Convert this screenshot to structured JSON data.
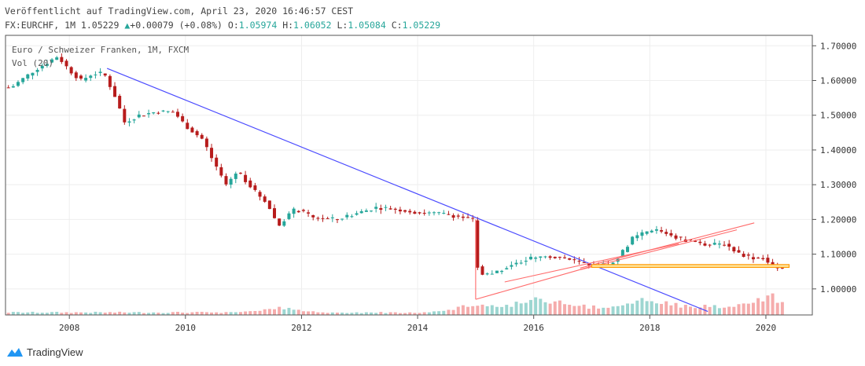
{
  "header": {
    "published": "Veröffentlicht auf TradingView.com, April 23, 2020 16:46:57 CEST",
    "symbol_line": "FX:EURCHF, 1M 1.05229",
    "change": "+0.00079 (+0.08%)",
    "o_label": "O:",
    "o_value": "1.05974",
    "h_label": "H:",
    "h_value": "1.06052",
    "l_label": "L:",
    "l_value": "1.05084",
    "c_label": "C:",
    "c_value": "1.05229"
  },
  "footer": {
    "brand": "TradingView"
  },
  "colors": {
    "up": "#26a69a",
    "down": "#b71c1c",
    "vol_up": "#92d2cc",
    "vol_down": "#f4a3a3",
    "trendline": "#4b4bff",
    "fan": "#ff6b6b",
    "zone_fill": "#fde9a6",
    "zone_stroke": "#ff9800",
    "grid": "#eeeeee",
    "axis": "#555555"
  },
  "chart_data": {
    "type": "candlestick",
    "instrument": "Euro / Schweizer Franken, 1M, FXCM",
    "volume_label": "Vol (20)",
    "x_range": [
      2006.9,
      2020.8
    ],
    "y_range": [
      0.925,
      1.73
    ],
    "x_ticks": [
      "2008",
      "2010",
      "2012",
      "2014",
      "2016",
      "2018",
      "2020"
    ],
    "x_tick_values": [
      2008,
      2010,
      2012,
      2014,
      2016,
      2018,
      2020
    ],
    "y_ticks": [
      "1.70000",
      "1.60000",
      "1.50000",
      "1.40000",
      "1.30000",
      "1.20000",
      "1.10000",
      "1.00000"
    ],
    "y_tick_values": [
      1.7,
      1.6,
      1.5,
      1.4,
      1.3,
      1.2,
      1.1,
      1.0
    ],
    "anchors": [
      [
        2007.0,
        1.58
      ],
      [
        2007.4,
        1.63
      ],
      [
        2007.8,
        1.67
      ],
      [
        2008.0,
        1.63
      ],
      [
        2008.2,
        1.6
      ],
      [
        2008.4,
        1.62
      ],
      [
        2008.6,
        1.62
      ],
      [
        2008.8,
        1.55
      ],
      [
        2008.95,
        1.48
      ],
      [
        2009.2,
        1.5
      ],
      [
        2009.5,
        1.51
      ],
      [
        2009.8,
        1.51
      ],
      [
        2010.0,
        1.47
      ],
      [
        2010.3,
        1.43
      ],
      [
        2010.5,
        1.36
      ],
      [
        2010.7,
        1.3
      ],
      [
        2010.9,
        1.34
      ],
      [
        2011.2,
        1.28
      ],
      [
        2011.4,
        1.25
      ],
      [
        2011.6,
        1.18
      ],
      [
        2011.75,
        1.21
      ],
      [
        2011.9,
        1.23
      ],
      [
        2012.2,
        1.205
      ],
      [
        2012.6,
        1.2
      ],
      [
        2013.0,
        1.22
      ],
      [
        2013.3,
        1.235
      ],
      [
        2013.6,
        1.23
      ],
      [
        2014.0,
        1.22
      ],
      [
        2014.5,
        1.215
      ],
      [
        2014.95,
        1.2
      ],
      [
        2015.05,
        1.04
      ],
      [
        2015.3,
        1.045
      ],
      [
        2015.6,
        1.07
      ],
      [
        2015.9,
        1.085
      ],
      [
        2016.2,
        1.095
      ],
      [
        2016.5,
        1.09
      ],
      [
        2016.8,
        1.075
      ],
      [
        2017.0,
        1.07
      ],
      [
        2017.3,
        1.07
      ],
      [
        2017.5,
        1.1
      ],
      [
        2017.7,
        1.145
      ],
      [
        2017.9,
        1.16
      ],
      [
        2018.1,
        1.17
      ],
      [
        2018.3,
        1.16
      ],
      [
        2018.5,
        1.145
      ],
      [
        2018.8,
        1.135
      ],
      [
        2019.0,
        1.125
      ],
      [
        2019.3,
        1.13
      ],
      [
        2019.5,
        1.105
      ],
      [
        2019.75,
        1.09
      ],
      [
        2019.95,
        1.09
      ],
      [
        2020.1,
        1.065
      ],
      [
        2020.3,
        1.055
      ]
    ],
    "volume_peaks": [
      [
        2011.6,
        0.38
      ],
      [
        2015.05,
        0.55
      ],
      [
        2016.1,
        0.9
      ],
      [
        2018.0,
        0.85
      ],
      [
        2020.1,
        0.95
      ]
    ],
    "drawings": {
      "blue_trendline": [
        [
          2008.65,
          1.635
        ],
        [
          2019.0,
          0.935
        ]
      ],
      "fan_lines": [
        [
          [
            2015.0,
            0.97
          ],
          [
            2017.0,
            1.065
          ]
        ],
        [
          [
            2015.5,
            1.02
          ],
          [
            2018.5,
            1.13
          ]
        ],
        [
          [
            2016.8,
            1.055
          ],
          [
            2019.5,
            1.17
          ]
        ],
        [
          [
            2016.8,
            1.06
          ],
          [
            2019.8,
            1.19
          ]
        ]
      ],
      "support_zone": [
        2017.0,
        2020.4,
        1.062,
        1.07
      ]
    }
  }
}
